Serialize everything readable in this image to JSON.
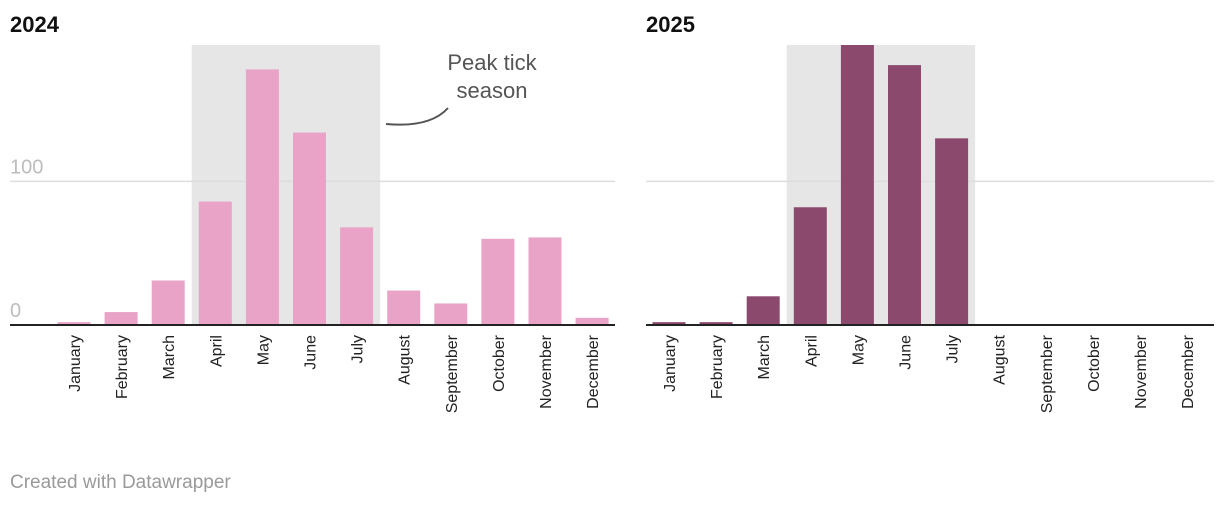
{
  "chart_data": [
    {
      "type": "bar",
      "title": "2024",
      "categories": [
        "January",
        "February",
        "March",
        "April",
        "May",
        "June",
        "July",
        "August",
        "September",
        "October",
        "November",
        "December"
      ],
      "values": [
        2,
        9,
        31,
        86,
        178,
        134,
        68,
        24,
        15,
        60,
        61,
        5
      ],
      "ylim": [
        0,
        195
      ],
      "yticks": [
        0,
        100
      ],
      "color": "#e8a3c7",
      "highlight": {
        "from": "April",
        "to": "July",
        "color": "#e6e6e6"
      },
      "annotation": "Peak tick season"
    },
    {
      "type": "bar",
      "title": "2025",
      "categories": [
        "January",
        "February",
        "March",
        "April",
        "May",
        "June",
        "July",
        "August",
        "September",
        "October",
        "November",
        "December"
      ],
      "values": [
        2,
        2,
        20,
        82,
        195,
        181,
        130,
        0,
        0,
        0,
        0,
        0
      ],
      "ylim": [
        0,
        195
      ],
      "yticks": [
        0,
        100
      ],
      "color": "#8b4a6d",
      "highlight": {
        "from": "April",
        "to": "July",
        "color": "#e6e6e6"
      }
    }
  ],
  "footer": "Created with Datawrapper"
}
